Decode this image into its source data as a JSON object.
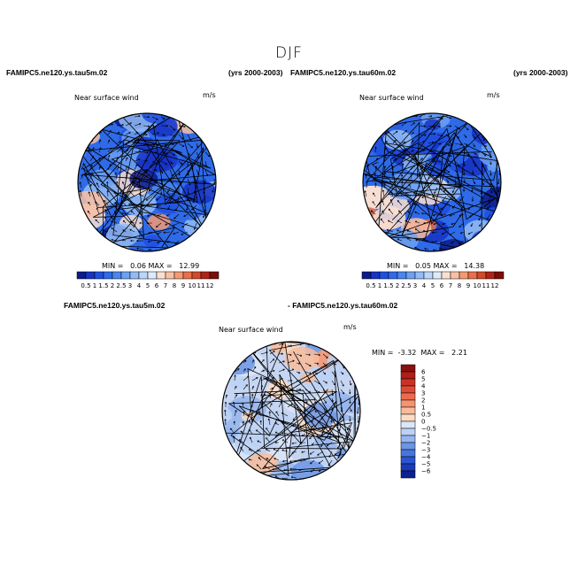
{
  "title": "DJF",
  "panels": [
    {
      "case_label": "FAMIPC5.ne120.ys.tau5m.02",
      "years": "(yrs 2000-2003)",
      "variable": "Near surface wind",
      "units": "m/s",
      "min_label": "MIN =",
      "min": "0.06",
      "max_label": "MAX =",
      "max": "12.99"
    },
    {
      "case_label": "FAMIPC5.ne120.ys.tau60m.02",
      "years": "(yrs 2000-2003)",
      "variable": "Near surface wind",
      "units": "m/s",
      "min_label": "MIN =",
      "min": "0.05",
      "max_label": "MAX =",
      "max": "14.38"
    }
  ],
  "difference": {
    "case_label_left": "FAMIPC5.ne120.ys.tau5m.02",
    "case_label_right": "- FAMIPC5.ne120.ys.tau60m.02",
    "variable": "Near surface wind",
    "units": "m/s",
    "min_label": "MIN =",
    "min": "-3.32",
    "max_label": "MAX =",
    "max": "2.21"
  },
  "colorbar_abs": {
    "labels": [
      "0.5",
      "1",
      "1.5",
      "2",
      "2.5",
      "3",
      "4",
      "5",
      "6",
      "7",
      "8",
      "9",
      "10",
      "11",
      "12"
    ],
    "colors": [
      "#0b1a8c",
      "#1633c4",
      "#1f4fe0",
      "#2f6ae8",
      "#4a86ee",
      "#6da1f2",
      "#93bcf6",
      "#bcd6f9",
      "#ddeafb",
      "#fbe0d2",
      "#f8c0a4",
      "#f39a74",
      "#e8714a",
      "#d24a2a",
      "#b02418",
      "#7c0d0a"
    ]
  },
  "colorbar_diff": {
    "labels": [
      "6",
      "5",
      "4",
      "3",
      "2",
      "1",
      "0.5",
      "0",
      "−0.5",
      "−1",
      "−2",
      "−3",
      "−4",
      "−5",
      "−6"
    ],
    "colors": [
      "#8c0f0f",
      "#b01e18",
      "#c93225",
      "#dd4b35",
      "#ec6b4f",
      "#f5946f",
      "#f9bc9a",
      "#fcdcc6",
      "#dbe6f7",
      "#bcd1f3",
      "#95b5ee",
      "#6b95e6",
      "#4775dc",
      "#2a55cf",
      "#1a3aba",
      "#0e2192"
    ]
  }
}
